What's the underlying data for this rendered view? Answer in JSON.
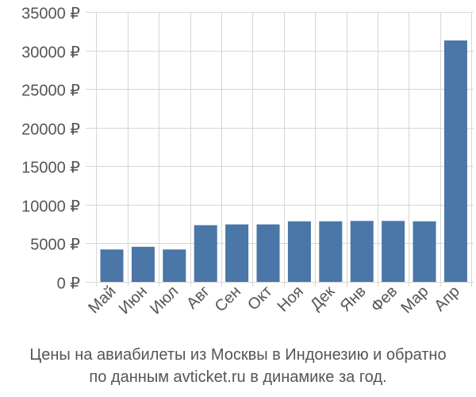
{
  "chart_data": {
    "type": "bar",
    "categories": [
      "Май",
      "Июн",
      "Июл",
      "Авг",
      "Сен",
      "Окт",
      "Ноя",
      "Дек",
      "Янв",
      "Фев",
      "Мар",
      "Апр"
    ],
    "values": [
      4200,
      4550,
      4200,
      7350,
      7450,
      7450,
      7850,
      7850,
      7900,
      7900,
      7850,
      31300
    ],
    "ylim": [
      0,
      35000
    ],
    "yticks": [
      0,
      5000,
      10000,
      15000,
      20000,
      25000,
      30000,
      35000
    ],
    "ytick_labels": [
      "0 ₽",
      "5000 ₽",
      "10000 ₽",
      "15000 ₽",
      "20000 ₽",
      "25000 ₽",
      "30000 ₽",
      "35000 ₽"
    ],
    "grid": true,
    "bar_color": "#4a76a8",
    "grid_color": "#d6d6d6"
  },
  "caption": {
    "line1": "Цены на авиабилеты из Москвы в Индонезию и обратно",
    "line2": "по данным avticket.ru в динамике за год."
  }
}
